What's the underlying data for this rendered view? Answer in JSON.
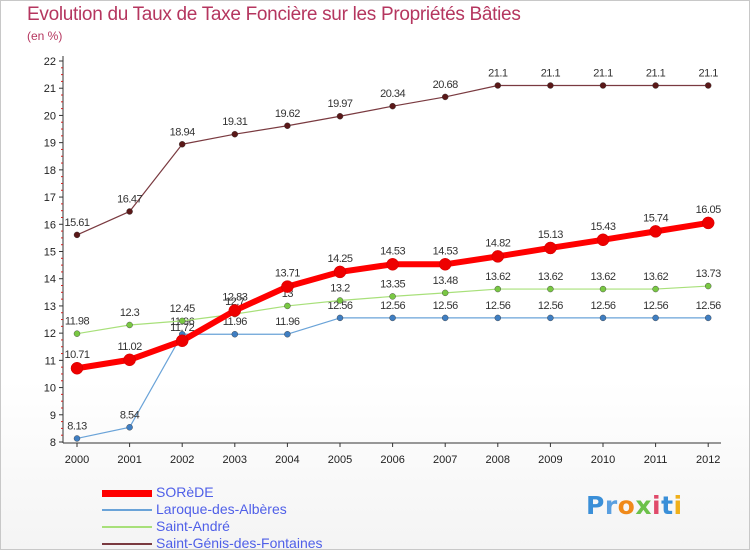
{
  "title": "Evolution du Taux de Taxe Foncière sur les Propriétés Bâties",
  "subtitle": "(en %)",
  "logo": {
    "text": "Proxiti",
    "letter_colors": [
      "#3a8fd8",
      "#5a9fe0",
      "#f08a1a",
      "#6cc14a",
      "#e04a6a",
      "#3a8fd8",
      "#f0b01a"
    ]
  },
  "chart_data": {
    "type": "line",
    "title": "Evolution du Taux de Taxe Foncière sur les Propriétés Bâties",
    "ylabel": "(en %)",
    "xlabel": "",
    "categories": [
      "2000",
      "2001",
      "2002",
      "2003",
      "2004",
      "2005",
      "2006",
      "2007",
      "2008",
      "2009",
      "2010",
      "2011",
      "2012"
    ],
    "ylim": [
      8,
      22
    ],
    "yticks": [
      "8",
      "9",
      "10",
      "11",
      "12",
      "13",
      "14",
      "15",
      "16",
      "17",
      "18",
      "19",
      "20",
      "21",
      "22"
    ],
    "grid": false,
    "legend_position": "bottom-left",
    "series": [
      {
        "name": "Saint-Génis-des-Fontaines",
        "color": "#7a3a40",
        "marker_color": "#5a1818",
        "labels": [
          "15.61",
          "16.47",
          "18.94",
          "19.31",
          "19.62",
          "19.97",
          "20.34",
          "20.68",
          "21.1",
          "21.1",
          "21.1",
          "21.1",
          "21.1"
        ],
        "values": [
          15.61,
          16.47,
          18.94,
          19.31,
          19.62,
          19.97,
          20.34,
          20.68,
          21.1,
          21.1,
          21.1,
          21.1,
          21.1
        ]
      },
      {
        "name": "Laroque-des-Albères",
        "color": "#6aa3d8",
        "marker_color": "#3f7ec2",
        "labels": [
          "8.13",
          "8.54",
          "11.96",
          "11.96",
          "11.96",
          "12.56",
          "12.56",
          "12.56",
          "12.56",
          "12.56",
          "12.56",
          "12.56",
          "12.56"
        ],
        "values": [
          8.13,
          8.54,
          11.96,
          11.96,
          11.96,
          12.56,
          12.56,
          12.56,
          12.56,
          12.56,
          12.56,
          12.56,
          12.56
        ]
      },
      {
        "name": "Saint-André",
        "color": "#a8e07a",
        "marker_color": "#79c843",
        "labels": [
          "11.98",
          "12.3",
          "12.45",
          "12.7",
          "13",
          "13.2",
          "13.35",
          "13.48",
          "13.62",
          "13.62",
          "13.62",
          "13.62",
          "13.73"
        ],
        "values": [
          11.98,
          12.3,
          12.45,
          12.7,
          13,
          13.2,
          13.35,
          13.48,
          13.62,
          13.62,
          13.62,
          13.62,
          13.73
        ]
      },
      {
        "name": "SORèDE",
        "color": "#ff0000",
        "marker_color": "#ee0000",
        "labels": [
          "10.71",
          "11.02",
          "11.72",
          "12.83",
          "13.71",
          "14.25",
          "14.53",
          "14.53",
          "14.82",
          "15.13",
          "15.43",
          "15.74",
          "16.05"
        ],
        "values": [
          10.71,
          11.02,
          11.72,
          12.83,
          13.71,
          14.25,
          14.53,
          14.53,
          14.82,
          15.13,
          15.43,
          15.74,
          16.05
        ]
      }
    ]
  },
  "legend": [
    {
      "label": "SORèDE",
      "color": "#ff0000"
    },
    {
      "label": "Laroque-des-Albères",
      "color": "#6aa3d8"
    },
    {
      "label": "Saint-André",
      "color": "#a8e07a"
    },
    {
      "label": "Saint-Génis-des-Fontaines",
      "color": "#7a3a40"
    }
  ]
}
